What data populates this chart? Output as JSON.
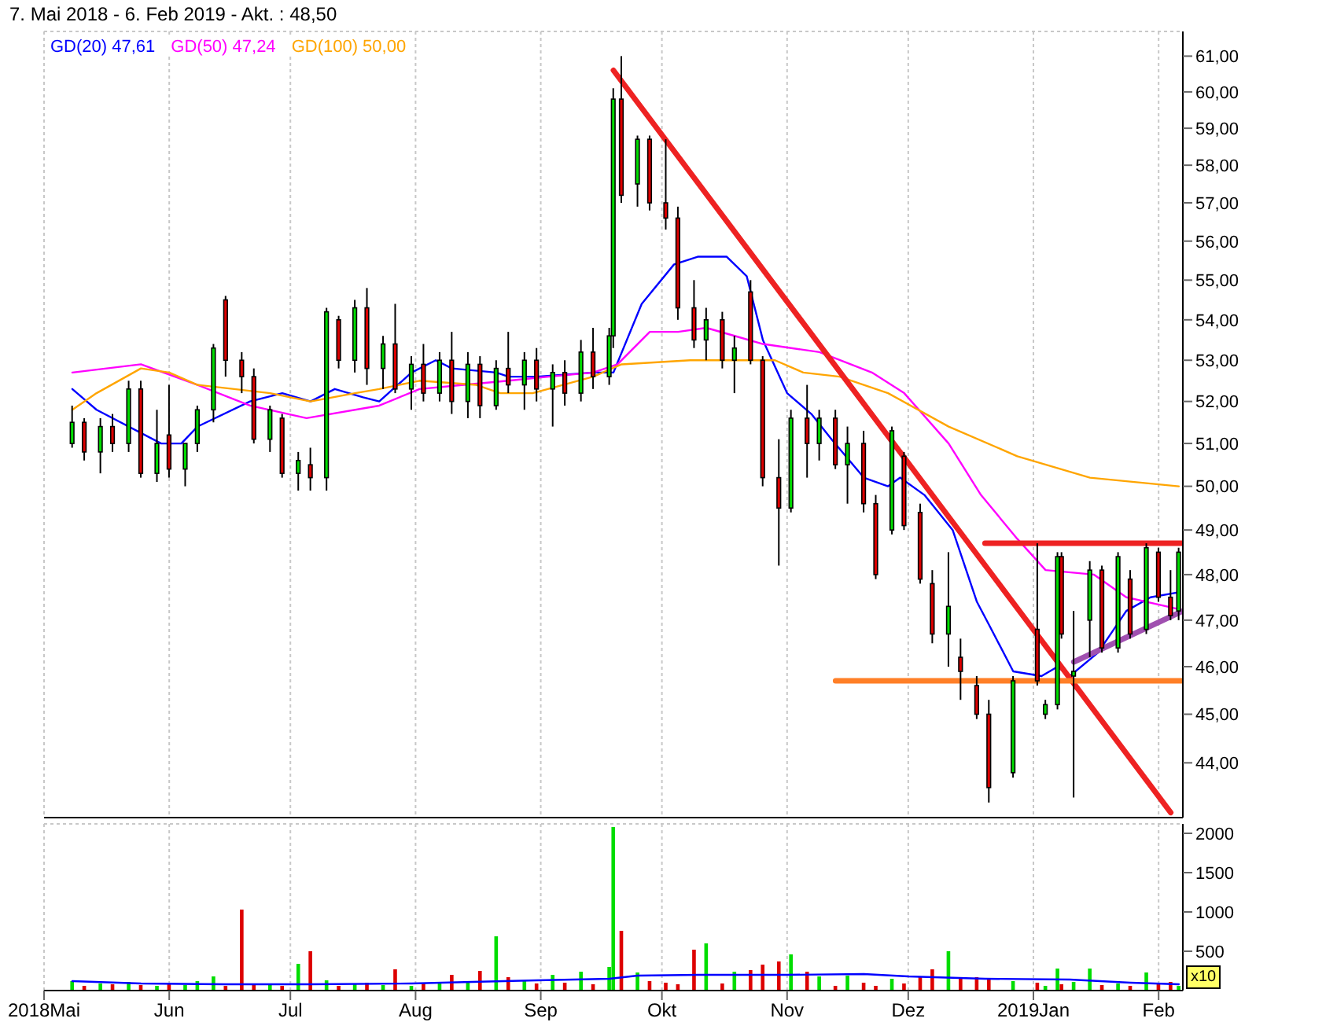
{
  "chart_data": [
    {
      "type": "candlestick",
      "title": "7. Mai 2018 - 6. Feb 2019 - Akt. : 48,50",
      "x": [
        "2018-05-08",
        "2018-05-11",
        "2018-05-15",
        "2018-05-18",
        "2018-05-22",
        "2018-05-25",
        "2018-05-29",
        "2018-06-01",
        "2018-06-05",
        "2018-06-08",
        "2018-06-12",
        "2018-06-15",
        "2018-06-19",
        "2018-06-22",
        "2018-06-26",
        "2018-06-29",
        "2018-07-03",
        "2018-07-06",
        "2018-07-10",
        "2018-07-13",
        "2018-07-17",
        "2018-07-20",
        "2018-07-24",
        "2018-07-27",
        "2018-07-31",
        "2018-08-03",
        "2018-08-07",
        "2018-08-10",
        "2018-08-14",
        "2018-08-17",
        "2018-08-21",
        "2018-08-24",
        "2018-08-28",
        "2018-08-31",
        "2018-09-04",
        "2018-09-07",
        "2018-09-11",
        "2018-09-14",
        "2018-09-18",
        "2018-09-19",
        "2018-09-21",
        "2018-09-25",
        "2018-09-28",
        "2018-10-02",
        "2018-10-05",
        "2018-10-09",
        "2018-10-12",
        "2018-10-16",
        "2018-10-19",
        "2018-10-23",
        "2018-10-26",
        "2018-10-30",
        "2018-11-02",
        "2018-11-06",
        "2018-11-09",
        "2018-11-13",
        "2018-11-16",
        "2018-11-20",
        "2018-11-23",
        "2018-11-27",
        "2018-11-30",
        "2018-12-04",
        "2018-12-07",
        "2018-12-11",
        "2018-12-14",
        "2018-12-18",
        "2018-12-21",
        "2018-12-27",
        "2019-01-02",
        "2019-01-04",
        "2019-01-07",
        "2019-01-08",
        "2019-01-11",
        "2019-01-15",
        "2019-01-18",
        "2019-01-22",
        "2019-01-25",
        "2019-01-29",
        "2019-02-01",
        "2019-02-04",
        "2019-02-06"
      ],
      "ohlc": [
        [
          51.0,
          51.9,
          50.9,
          51.5
        ],
        [
          51.5,
          51.6,
          50.6,
          50.8
        ],
        [
          50.8,
          51.6,
          50.3,
          51.4
        ],
        [
          51.4,
          51.7,
          50.8,
          51.0
        ],
        [
          51.0,
          52.5,
          50.8,
          52.3
        ],
        [
          52.3,
          52.5,
          50.2,
          50.3
        ],
        [
          50.3,
          51.8,
          50.1,
          51.0
        ],
        [
          51.2,
          52.4,
          50.2,
          50.4
        ],
        [
          50.4,
          51.0,
          50.0,
          51.0
        ],
        [
          51.0,
          51.9,
          50.8,
          51.8
        ],
        [
          51.8,
          53.4,
          51.5,
          53.3
        ],
        [
          54.5,
          54.6,
          52.6,
          53.0
        ],
        [
          53.0,
          53.2,
          52.2,
          52.6
        ],
        [
          52.6,
          52.8,
          51.0,
          51.1
        ],
        [
          51.1,
          51.9,
          50.8,
          51.8
        ],
        [
          51.6,
          51.7,
          50.2,
          50.3
        ],
        [
          50.3,
          50.8,
          49.9,
          50.6
        ],
        [
          50.5,
          50.9,
          49.9,
          50.2
        ],
        [
          50.2,
          54.3,
          49.9,
          54.2
        ],
        [
          54.0,
          54.1,
          52.8,
          53.0
        ],
        [
          53.0,
          54.5,
          52.7,
          54.3
        ],
        [
          54.3,
          54.8,
          52.4,
          52.8
        ],
        [
          52.8,
          53.6,
          52.3,
          53.4
        ],
        [
          53.4,
          54.4,
          52.2,
          52.3
        ],
        [
          52.3,
          53.1,
          51.8,
          52.9
        ],
        [
          52.9,
          53.4,
          52.0,
          52.2
        ],
        [
          52.2,
          53.2,
          52.0,
          53.0
        ],
        [
          53.0,
          53.7,
          51.7,
          52.0
        ],
        [
          52.0,
          53.2,
          51.6,
          52.9
        ],
        [
          52.9,
          53.1,
          51.6,
          51.9
        ],
        [
          51.9,
          53.0,
          51.8,
          52.8
        ],
        [
          52.8,
          53.7,
          52.2,
          52.4
        ],
        [
          52.4,
          53.2,
          51.8,
          53.0
        ],
        [
          53.0,
          53.3,
          52.0,
          52.3
        ],
        [
          52.3,
          52.9,
          51.4,
          52.7
        ],
        [
          52.7,
          53.0,
          51.9,
          52.2
        ],
        [
          52.2,
          53.5,
          52.0,
          53.2
        ],
        [
          53.2,
          53.8,
          52.3,
          52.6
        ],
        [
          52.6,
          53.8,
          52.4,
          53.6
        ],
        [
          53.6,
          60.1,
          53.3,
          59.8
        ],
        [
          59.8,
          61.0,
          57.0,
          57.2
        ],
        [
          57.5,
          58.8,
          56.9,
          58.7
        ],
        [
          58.7,
          58.8,
          56.8,
          57.0
        ],
        [
          57.0,
          58.7,
          56.3,
          56.6
        ],
        [
          56.6,
          56.9,
          54.0,
          54.3
        ],
        [
          54.3,
          55.0,
          53.3,
          53.5
        ],
        [
          53.5,
          54.3,
          53.0,
          54.0
        ],
        [
          54.0,
          54.2,
          52.8,
          53.0
        ],
        [
          53.0,
          53.6,
          52.2,
          53.3
        ],
        [
          54.7,
          55.0,
          52.9,
          53.0
        ],
        [
          53.0,
          53.1,
          50.0,
          50.2
        ],
        [
          50.2,
          51.1,
          48.2,
          49.5
        ],
        [
          49.5,
          51.8,
          49.4,
          51.6
        ],
        [
          51.6,
          52.4,
          50.2,
          51.0
        ],
        [
          51.0,
          51.8,
          50.6,
          51.6
        ],
        [
          51.6,
          51.8,
          50.4,
          50.5
        ],
        [
          50.5,
          51.4,
          49.6,
          51.0
        ],
        [
          51.0,
          51.3,
          49.4,
          49.6
        ],
        [
          49.6,
          49.8,
          47.9,
          48.0
        ],
        [
          49.0,
          51.4,
          48.9,
          51.3
        ],
        [
          50.7,
          50.8,
          49.0,
          49.1
        ],
        [
          49.4,
          49.6,
          47.8,
          47.9
        ],
        [
          47.8,
          48.1,
          46.5,
          46.7
        ],
        [
          46.7,
          48.5,
          46.0,
          47.3
        ],
        [
          46.2,
          46.6,
          45.3,
          45.9
        ],
        [
          45.6,
          45.8,
          44.9,
          45.0
        ],
        [
          45.0,
          45.3,
          43.2,
          43.5
        ],
        [
          43.8,
          45.8,
          43.7,
          45.7
        ],
        [
          46.8,
          48.7,
          45.6,
          45.7
        ],
        [
          45.0,
          45.3,
          44.9,
          45.2
        ],
        [
          45.2,
          48.5,
          45.1,
          48.4
        ],
        [
          48.4,
          48.5,
          46.6,
          46.7
        ],
        [
          45.8,
          47.2,
          43.3,
          45.9
        ],
        [
          47.0,
          48.3,
          46.2,
          48.1
        ],
        [
          48.1,
          48.2,
          46.3,
          46.4
        ],
        [
          46.4,
          48.5,
          46.3,
          48.4
        ],
        [
          47.9,
          48.1,
          46.6,
          46.7
        ],
        [
          46.8,
          48.7,
          46.7,
          48.6
        ],
        [
          48.5,
          48.6,
          47.4,
          47.5
        ],
        [
          47.5,
          48.1,
          47.0,
          47.1
        ],
        [
          47.2,
          48.6,
          47.0,
          48.5
        ]
      ],
      "colors": [
        "#00dd00",
        "#dd0000",
        "#00dd00",
        "#dd0000",
        "#00dd00",
        "#dd0000",
        "#00dd00",
        "#dd0000",
        "#00dd00",
        "#00dd00",
        "#00dd00",
        "#dd0000",
        "#dd0000",
        "#dd0000",
        "#00dd00",
        "#dd0000",
        "#00dd00",
        "#dd0000",
        "#00dd00",
        "#dd0000",
        "#00dd00",
        "#dd0000",
        "#00dd00",
        "#dd0000",
        "#00dd00",
        "#dd0000",
        "#00dd00",
        "#dd0000",
        "#00dd00",
        "#dd0000",
        "#00dd00",
        "#dd0000",
        "#00dd00",
        "#dd0000",
        "#00dd00",
        "#dd0000",
        "#00dd00",
        "#dd0000",
        "#00dd00",
        "#00dd00",
        "#dd0000",
        "#00dd00",
        "#dd0000",
        "#dd0000",
        "#dd0000",
        "#dd0000",
        "#00dd00",
        "#dd0000",
        "#00dd00",
        "#dd0000",
        "#dd0000",
        "#dd0000",
        "#00dd00",
        "#dd0000",
        "#00dd00",
        "#dd0000",
        "#00dd00",
        "#dd0000",
        "#dd0000",
        "#00dd00",
        "#dd0000",
        "#dd0000",
        "#dd0000",
        "#00dd00",
        "#dd0000",
        "#dd0000",
        "#dd0000",
        "#00dd00",
        "#dd0000",
        "#00dd00",
        "#00dd00",
        "#dd0000",
        "#00dd00",
        "#00dd00",
        "#dd0000",
        "#00dd00",
        "#dd0000",
        "#00dd00",
        "#dd0000",
        "#dd0000",
        "#00dd00"
      ],
      "series": [
        {
          "type": "line",
          "name": "GD(20) 47,61",
          "color": "#0000ff",
          "x": [
            "2018-05-08",
            "2018-05-14",
            "2018-05-30",
            "2018-06-04",
            "2018-06-08",
            "2018-06-21",
            "2018-06-29",
            "2018-07-06",
            "2018-07-12",
            "2018-07-19",
            "2018-07-23",
            "2018-07-31",
            "2018-08-06",
            "2018-08-10",
            "2018-08-21",
            "2018-08-24",
            "2018-08-31",
            "2018-09-14",
            "2018-09-19",
            "2018-09-26",
            "2018-10-04",
            "2018-10-10",
            "2018-10-17",
            "2018-10-22",
            "2018-10-26",
            "2018-11-01",
            "2018-11-07",
            "2018-11-12",
            "2018-11-20",
            "2018-11-26",
            "2018-11-29",
            "2018-12-05",
            "2018-12-12",
            "2018-12-18",
            "2018-12-21",
            "2018-12-27",
            "2019-01-03",
            "2019-01-07",
            "2019-01-10",
            "2019-01-17",
            "2019-01-24",
            "2019-01-30",
            "2019-02-06"
          ],
          "values": [
            52.3,
            51.8,
            51.0,
            51.0,
            51.4,
            52.0,
            52.2,
            52.0,
            52.3,
            52.1,
            52.0,
            52.7,
            53.0,
            52.8,
            52.7,
            52.6,
            52.6,
            52.7,
            52.7,
            54.4,
            55.4,
            55.6,
            55.6,
            55.1,
            53.5,
            52.2,
            51.7,
            51.1,
            50.2,
            50.0,
            50.2,
            49.8,
            49.0,
            47.4,
            46.9,
            45.9,
            45.8,
            46.0,
            45.8,
            46.3,
            47.2,
            47.5,
            47.61
          ]
        },
        {
          "type": "line",
          "name": "GD(50) 47,24",
          "color": "#ff00ff",
          "x": [
            "2018-05-08",
            "2018-05-25",
            "2018-06-08",
            "2018-06-21",
            "2018-07-05",
            "2018-07-23",
            "2018-08-02",
            "2018-08-13",
            "2018-08-24",
            "2018-09-03",
            "2018-09-14",
            "2018-09-20",
            "2018-09-28",
            "2018-10-05",
            "2018-10-12",
            "2018-10-19",
            "2018-10-26",
            "2018-11-09",
            "2018-11-22",
            "2018-11-30",
            "2018-12-11",
            "2018-12-19",
            "2018-12-28",
            "2019-01-04",
            "2019-01-16",
            "2019-01-24",
            "2019-02-06"
          ],
          "values": [
            52.7,
            52.9,
            52.4,
            51.9,
            51.6,
            51.9,
            52.3,
            52.4,
            52.5,
            52.6,
            52.7,
            52.9,
            53.7,
            53.7,
            53.8,
            53.6,
            53.4,
            53.2,
            52.7,
            52.2,
            51.0,
            49.8,
            48.8,
            48.1,
            48.0,
            47.5,
            47.24
          ]
        },
        {
          "type": "line",
          "name": "GD(100) 50,00",
          "color": "#ffa500",
          "x": [
            "2018-05-08",
            "2018-05-14",
            "2018-05-25",
            "2018-06-01",
            "2018-06-08",
            "2018-06-26",
            "2018-07-06",
            "2018-07-17",
            "2018-07-23",
            "2018-08-02",
            "2018-08-16",
            "2018-08-22",
            "2018-08-30",
            "2018-09-14",
            "2018-09-21",
            "2018-10-08",
            "2018-10-29",
            "2018-11-05",
            "2018-11-14",
            "2018-11-26",
            "2018-12-11",
            "2018-12-28",
            "2019-01-15",
            "2019-02-06"
          ],
          "values": [
            51.8,
            52.2,
            52.8,
            52.7,
            52.4,
            52.2,
            52.0,
            52.2,
            52.3,
            52.5,
            52.4,
            52.2,
            52.2,
            52.6,
            52.9,
            53.0,
            53.0,
            52.7,
            52.6,
            52.2,
            51.4,
            50.7,
            50.2,
            50.0
          ]
        },
        {
          "type": "line",
          "color": "#ee2222",
          "x": [
            "2018-09-19",
            "2019-02-04"
          ],
          "values": [
            60.6,
            43.0
          ]
        },
        {
          "type": "line",
          "color": "#ee2222",
          "x": [
            "2018-12-20",
            "2019-02-07"
          ],
          "values": [
            48.7,
            48.7
          ]
        },
        {
          "type": "line",
          "color": "#ff7f27",
          "x": [
            "2018-11-13",
            "2019-02-07"
          ],
          "values": [
            45.7,
            45.7
          ]
        },
        {
          "type": "line",
          "color": "#a050b0",
          "x": [
            "2019-01-11",
            "2019-02-07"
          ],
          "values": [
            46.1,
            47.2
          ]
        }
      ],
      "xlim": [
        "2018-05-01",
        "2019-02-07"
      ],
      "xticks": [
        {
          "value": "2018-05-01",
          "label": null
        },
        {
          "value": "2018-06-01",
          "label": null
        },
        {
          "value": "2018-07-01",
          "label": null
        },
        {
          "value": "2018-08-01",
          "label": null
        },
        {
          "value": "2018-09-01",
          "label": null
        },
        {
          "value": "2018-10-01",
          "label": null
        },
        {
          "value": "2018-11-01",
          "label": null
        },
        {
          "value": "2018-12-01",
          "label": null
        },
        {
          "value": "2019-01-01",
          "label": null
        },
        {
          "value": "2019-02-01",
          "label": null
        }
      ],
      "ylim": [
        42.9,
        61.7
      ],
      "yticks": [
        {
          "value": 44,
          "label": "44,00"
        },
        {
          "value": 45,
          "label": "45,00"
        },
        {
          "value": 46,
          "label": "46,00"
        },
        {
          "value": 47,
          "label": "47,00"
        },
        {
          "value": 48,
          "label": "48,00"
        },
        {
          "value": 49,
          "label": "49,00"
        },
        {
          "value": 50,
          "label": "50,00"
        },
        {
          "value": 51,
          "label": "51,00"
        },
        {
          "value": 52,
          "label": "52,00"
        },
        {
          "value": 53,
          "label": "53,00"
        },
        {
          "value": 54,
          "label": "54,00"
        },
        {
          "value": 55,
          "label": "55,00"
        },
        {
          "value": 56,
          "label": "56,00"
        },
        {
          "value": 57,
          "label": "57,00"
        },
        {
          "value": 58,
          "label": "58,00"
        },
        {
          "value": 59,
          "label": "59,00"
        },
        {
          "value": 60,
          "label": "60,00"
        },
        {
          "value": 61,
          "label": "61,00"
        }
      ],
      "log": true,
      "grid": true,
      "legend": "top left",
      "tick_labels": "y"
    },
    {
      "type": "bar",
      "x": [
        "2018-05-08",
        "2018-05-11",
        "2018-05-15",
        "2018-05-18",
        "2018-05-22",
        "2018-05-25",
        "2018-05-29",
        "2018-06-01",
        "2018-06-05",
        "2018-06-08",
        "2018-06-12",
        "2018-06-15",
        "2018-06-19",
        "2018-06-22",
        "2018-06-26",
        "2018-06-29",
        "2018-07-03",
        "2018-07-06",
        "2018-07-10",
        "2018-07-13",
        "2018-07-17",
        "2018-07-20",
        "2018-07-24",
        "2018-07-27",
        "2018-07-31",
        "2018-08-03",
        "2018-08-07",
        "2018-08-10",
        "2018-08-14",
        "2018-08-17",
        "2018-08-21",
        "2018-08-24",
        "2018-08-28",
        "2018-08-31",
        "2018-09-04",
        "2018-09-07",
        "2018-09-11",
        "2018-09-14",
        "2018-09-18",
        "2018-09-19",
        "2018-09-21",
        "2018-09-25",
        "2018-09-28",
        "2018-10-02",
        "2018-10-05",
        "2018-10-09",
        "2018-10-12",
        "2018-10-16",
        "2018-10-19",
        "2018-10-23",
        "2018-10-26",
        "2018-10-30",
        "2018-11-02",
        "2018-11-06",
        "2018-11-09",
        "2018-11-13",
        "2018-11-16",
        "2018-11-20",
        "2018-11-23",
        "2018-11-27",
        "2018-11-30",
        "2018-12-04",
        "2018-12-07",
        "2018-12-11",
        "2018-12-14",
        "2018-12-18",
        "2018-12-21",
        "2018-12-27",
        "2019-01-02",
        "2019-01-04",
        "2019-01-07",
        "2019-01-08",
        "2019-01-11",
        "2019-01-15",
        "2019-01-18",
        "2019-01-22",
        "2019-01-25",
        "2019-01-29",
        "2019-02-01",
        "2019-02-04",
        "2019-02-06"
      ],
      "series": [
        {
          "type": "bar",
          "colors": [
            "#00dd00",
            "#dd0000",
            "#00dd00",
            "#dd0000",
            "#00dd00",
            "#dd0000",
            "#00dd00",
            "#dd0000",
            "#00dd00",
            "#00dd00",
            "#00dd00",
            "#dd0000",
            "#dd0000",
            "#dd0000",
            "#00dd00",
            "#dd0000",
            "#00dd00",
            "#dd0000",
            "#00dd00",
            "#dd0000",
            "#00dd00",
            "#dd0000",
            "#00dd00",
            "#dd0000",
            "#00dd00",
            "#dd0000",
            "#00dd00",
            "#dd0000",
            "#00dd00",
            "#dd0000",
            "#00dd00",
            "#dd0000",
            "#00dd00",
            "#dd0000",
            "#00dd00",
            "#dd0000",
            "#00dd00",
            "#dd0000",
            "#00dd00",
            "#00dd00",
            "#dd0000",
            "#00dd00",
            "#dd0000",
            "#dd0000",
            "#dd0000",
            "#dd0000",
            "#00dd00",
            "#dd0000",
            "#00dd00",
            "#dd0000",
            "#dd0000",
            "#dd0000",
            "#00dd00",
            "#dd0000",
            "#00dd00",
            "#dd0000",
            "#00dd00",
            "#dd0000",
            "#dd0000",
            "#00dd00",
            "#dd0000",
            "#dd0000",
            "#dd0000",
            "#00dd00",
            "#dd0000",
            "#dd0000",
            "#dd0000",
            "#00dd00",
            "#dd0000",
            "#00dd00",
            "#00dd00",
            "#dd0000",
            "#00dd00",
            "#00dd00",
            "#dd0000",
            "#00dd00",
            "#dd0000",
            "#00dd00",
            "#dd0000",
            "#dd0000",
            "#00dd00"
          ],
          "values": [
            120,
            60,
            90,
            80,
            110,
            70,
            60,
            90,
            70,
            120,
            180,
            60,
            1030,
            90,
            80,
            60,
            340,
            500,
            130,
            60,
            80,
            100,
            70,
            270,
            60,
            90,
            110,
            200,
            100,
            250,
            690,
            170,
            130,
            90,
            200,
            100,
            240,
            80,
            300,
            2080,
            760,
            230,
            120,
            100,
            80,
            520,
            600,
            90,
            240,
            260,
            330,
            370,
            460,
            240,
            180,
            60,
            190,
            100,
            60,
            150,
            90,
            180,
            270,
            500,
            160,
            170,
            140,
            120,
            100,
            60,
            280,
            80,
            110,
            280,
            70,
            90,
            60,
            230,
            80,
            110,
            60
          ]
        },
        {
          "type": "line",
          "color": "#0000ff",
          "x": [
            "2018-05-08",
            "2018-05-25",
            "2018-06-15",
            "2018-07-06",
            "2018-07-31",
            "2018-08-15",
            "2018-08-31",
            "2018-09-18",
            "2018-09-25",
            "2018-10-10",
            "2018-11-01",
            "2018-11-20",
            "2018-12-01",
            "2018-12-20",
            "2019-01-10",
            "2019-01-25",
            "2019-02-06"
          ],
          "values": [
            120,
            90,
            80,
            80,
            90,
            110,
            130,
            150,
            190,
            200,
            200,
            210,
            180,
            150,
            140,
            100,
            80
          ]
        }
      ],
      "xlim": [
        "2018-05-01",
        "2019-02-07"
      ],
      "xticks": [
        {
          "value": "2018-05-01",
          "label": "2018Mai"
        },
        {
          "value": "2018-06-01",
          "label": "Jun"
        },
        {
          "value": "2018-07-01",
          "label": "Jul"
        },
        {
          "value": "2018-08-01",
          "label": "Aug"
        },
        {
          "value": "2018-09-01",
          "label": "Sep"
        },
        {
          "value": "2018-10-01",
          "label": "Okt"
        },
        {
          "value": "2018-11-01",
          "label": "Nov"
        },
        {
          "value": "2018-12-01",
          "label": "Dez"
        },
        {
          "value": "2019-01-01",
          "label": "2019Jan"
        },
        {
          "value": "2019-02-01",
          "label": "Feb"
        }
      ],
      "ylim": [
        0,
        2120
      ],
      "yticks": [
        500,
        1000,
        1500,
        2000
      ],
      "grid": true,
      "annotations": [
        "x10"
      ]
    }
  ]
}
